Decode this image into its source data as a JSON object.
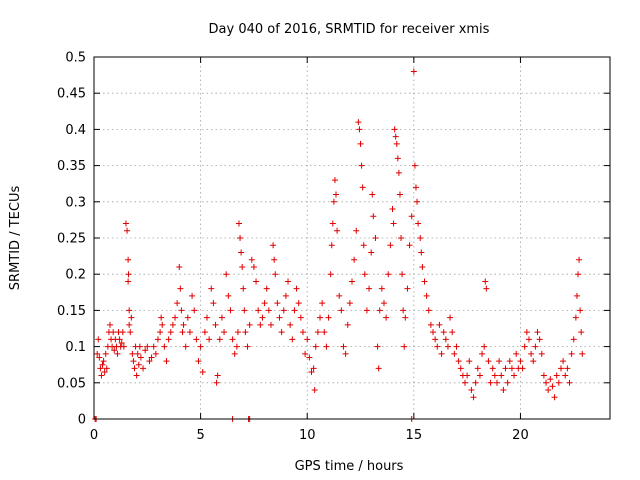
{
  "chart_data": {
    "type": "scatter",
    "title": "Day 040 of 2016, SRMTID for receiver xmis",
    "xlabel": "GPS time / hours",
    "ylabel": "SRMTID / TECUs",
    "xlim": [
      0,
      24.2
    ],
    "ylim": [
      0,
      0.5
    ],
    "xticks": [
      0,
      5,
      10,
      15,
      20
    ],
    "xtick_labels": [
      "0",
      "5",
      "10",
      "15",
      "20"
    ],
    "yticks": [
      0,
      0.05,
      0.1,
      0.15,
      0.2,
      0.25,
      0.3,
      0.35,
      0.4,
      0.45,
      0.5
    ],
    "ytick_labels": [
      "0",
      "0.05",
      "0.1",
      "0.15",
      "0.2",
      "0.25",
      "0.3",
      "0.35",
      "0.4",
      "0.45",
      "0.5"
    ],
    "grid": true,
    "marker": "plus",
    "series": [
      {
        "name": "SRMTID",
        "color": "#e00000",
        "points": [
          [
            0.05,
            0.0
          ],
          [
            0.15,
            0.09
          ],
          [
            0.2,
            0.11
          ],
          [
            0.25,
            0.085
          ],
          [
            0.3,
            0.07
          ],
          [
            0.35,
            0.06
          ],
          [
            0.4,
            0.075
          ],
          [
            0.45,
            0.08
          ],
          [
            0.5,
            0.065
          ],
          [
            0.55,
            0.09
          ],
          [
            0.6,
            0.07
          ],
          [
            0.65,
            0.1
          ],
          [
            0.7,
            0.12
          ],
          [
            0.75,
            0.13
          ],
          [
            0.8,
            0.11
          ],
          [
            0.85,
            0.1
          ],
          [
            0.9,
            0.12
          ],
          [
            0.95,
            0.095
          ],
          [
            1.0,
            0.11
          ],
          [
            1.05,
            0.1
          ],
          [
            1.1,
            0.09
          ],
          [
            1.15,
            0.12
          ],
          [
            1.2,
            0.11
          ],
          [
            1.25,
            0.1
          ],
          [
            1.3,
            0.105
          ],
          [
            1.35,
            0.12
          ],
          [
            1.4,
            0.1
          ],
          [
            1.5,
            0.27
          ],
          [
            1.55,
            0.26
          ],
          [
            1.6,
            0.22
          ],
          [
            1.6,
            0.19
          ],
          [
            1.62,
            0.2
          ],
          [
            1.65,
            0.15
          ],
          [
            1.65,
            0.13
          ],
          [
            1.7,
            0.12
          ],
          [
            1.75,
            0.14
          ],
          [
            1.8,
            0.09
          ],
          [
            1.85,
            0.08
          ],
          [
            1.9,
            0.07
          ],
          [
            1.95,
            0.1
          ],
          [
            2.0,
            0.06
          ],
          [
            2.05,
            0.09
          ],
          [
            2.1,
            0.075
          ],
          [
            2.15,
            0.1
          ],
          [
            2.2,
            0.085
          ],
          [
            2.3,
            0.07
          ],
          [
            2.4,
            0.095
          ],
          [
            2.5,
            0.1
          ],
          [
            2.6,
            0.08
          ],
          [
            2.7,
            0.085
          ],
          [
            2.8,
            0.1
          ],
          [
            2.9,
            0.09
          ],
          [
            3.0,
            0.11
          ],
          [
            3.1,
            0.12
          ],
          [
            3.15,
            0.14
          ],
          [
            3.2,
            0.13
          ],
          [
            3.3,
            0.1
          ],
          [
            3.4,
            0.08
          ],
          [
            3.5,
            0.11
          ],
          [
            3.6,
            0.12
          ],
          [
            3.7,
            0.13
          ],
          [
            3.8,
            0.14
          ],
          [
            3.9,
            0.16
          ],
          [
            4.0,
            0.21
          ],
          [
            4.05,
            0.18
          ],
          [
            4.1,
            0.15
          ],
          [
            4.15,
            0.12
          ],
          [
            4.2,
            0.13
          ],
          [
            4.3,
            0.1
          ],
          [
            4.4,
            0.14
          ],
          [
            4.5,
            0.12
          ],
          [
            4.6,
            0.17
          ],
          [
            4.7,
            0.15
          ],
          [
            4.8,
            0.11
          ],
          [
            4.9,
            0.08
          ],
          [
            5.0,
            0.1
          ],
          [
            5.1,
            0.065
          ],
          [
            5.2,
            0.12
          ],
          [
            5.3,
            0.14
          ],
          [
            5.4,
            0.11
          ],
          [
            5.5,
            0.18
          ],
          [
            5.6,
            0.16
          ],
          [
            5.7,
            0.13
          ],
          [
            5.75,
            0.05
          ],
          [
            5.8,
            0.06
          ],
          [
            5.9,
            0.11
          ],
          [
            6.0,
            0.14
          ],
          [
            6.1,
            0.12
          ],
          [
            6.2,
            0.2
          ],
          [
            6.3,
            0.17
          ],
          [
            6.4,
            0.15
          ],
          [
            6.5,
            0.11
          ],
          [
            6.6,
            0.09
          ],
          [
            6.7,
            0.1
          ],
          [
            6.75,
            0.12
          ],
          [
            6.8,
            0.27
          ],
          [
            6.85,
            0.25
          ],
          [
            6.9,
            0.23
          ],
          [
            6.95,
            0.21
          ],
          [
            7.0,
            0.18
          ],
          [
            7.05,
            0.15
          ],
          [
            7.1,
            0.12
          ],
          [
            7.2,
            0.1
          ],
          [
            7.3,
            0.13
          ],
          [
            7.4,
            0.22
          ],
          [
            7.5,
            0.21
          ],
          [
            7.6,
            0.19
          ],
          [
            7.7,
            0.15
          ],
          [
            7.8,
            0.13
          ],
          [
            7.9,
            0.14
          ],
          [
            8.0,
            0.16
          ],
          [
            8.1,
            0.18
          ],
          [
            8.2,
            0.15
          ],
          [
            8.3,
            0.13
          ],
          [
            8.4,
            0.24
          ],
          [
            8.45,
            0.22
          ],
          [
            8.5,
            0.2
          ],
          [
            8.6,
            0.16
          ],
          [
            8.7,
            0.14
          ],
          [
            8.8,
            0.12
          ],
          [
            8.9,
            0.15
          ],
          [
            9.0,
            0.17
          ],
          [
            9.1,
            0.19
          ],
          [
            9.2,
            0.13
          ],
          [
            9.3,
            0.11
          ],
          [
            9.4,
            0.15
          ],
          [
            9.5,
            0.18
          ],
          [
            9.6,
            0.16
          ],
          [
            9.7,
            0.14
          ],
          [
            9.8,
            0.12
          ],
          [
            9.9,
            0.09
          ],
          [
            10.0,
            0.11
          ],
          [
            10.1,
            0.085
          ],
          [
            10.2,
            0.065
          ],
          [
            10.3,
            0.07
          ],
          [
            10.35,
            0.04
          ],
          [
            10.4,
            0.1
          ],
          [
            10.5,
            0.12
          ],
          [
            10.6,
            0.14
          ],
          [
            10.7,
            0.16
          ],
          [
            10.8,
            0.12
          ],
          [
            10.9,
            0.1
          ],
          [
            11.0,
            0.14
          ],
          [
            11.1,
            0.2
          ],
          [
            11.15,
            0.24
          ],
          [
            11.2,
            0.27
          ],
          [
            11.25,
            0.3
          ],
          [
            11.3,
            0.33
          ],
          [
            11.35,
            0.31
          ],
          [
            11.4,
            0.26
          ],
          [
            11.5,
            0.17
          ],
          [
            11.6,
            0.15
          ],
          [
            11.7,
            0.1
          ],
          [
            11.8,
            0.09
          ],
          [
            11.9,
            0.13
          ],
          [
            12.0,
            0.16
          ],
          [
            12.1,
            0.19
          ],
          [
            12.2,
            0.22
          ],
          [
            12.3,
            0.26
          ],
          [
            12.4,
            0.41
          ],
          [
            12.45,
            0.4
          ],
          [
            12.5,
            0.38
          ],
          [
            12.55,
            0.35
          ],
          [
            12.6,
            0.32
          ],
          [
            12.65,
            0.24
          ],
          [
            12.7,
            0.2
          ],
          [
            12.8,
            0.15
          ],
          [
            12.9,
            0.18
          ],
          [
            13.0,
            0.23
          ],
          [
            13.05,
            0.31
          ],
          [
            13.1,
            0.28
          ],
          [
            13.2,
            0.25
          ],
          [
            13.3,
            0.1
          ],
          [
            13.35,
            0.07
          ],
          [
            13.4,
            0.15
          ],
          [
            13.5,
            0.18
          ],
          [
            13.6,
            0.16
          ],
          [
            13.7,
            0.14
          ],
          [
            13.8,
            0.2
          ],
          [
            13.9,
            0.24
          ],
          [
            14.0,
            0.29
          ],
          [
            14.05,
            0.27
          ],
          [
            14.1,
            0.4
          ],
          [
            14.15,
            0.39
          ],
          [
            14.2,
            0.38
          ],
          [
            14.25,
            0.36
          ],
          [
            14.3,
            0.34
          ],
          [
            14.35,
            0.31
          ],
          [
            14.4,
            0.25
          ],
          [
            14.45,
            0.2
          ],
          [
            14.5,
            0.15
          ],
          [
            14.55,
            0.1
          ],
          [
            14.6,
            0.14
          ],
          [
            14.7,
            0.18
          ],
          [
            14.8,
            0.24
          ],
          [
            14.9,
            0.28
          ],
          [
            15.0,
            0.48
          ],
          [
            15.05,
            0.35
          ],
          [
            15.1,
            0.32
          ],
          [
            15.15,
            0.3
          ],
          [
            15.2,
            0.27
          ],
          [
            15.3,
            0.25
          ],
          [
            15.35,
            0.23
          ],
          [
            15.4,
            0.21
          ],
          [
            15.5,
            0.19
          ],
          [
            15.6,
            0.17
          ],
          [
            15.7,
            0.15
          ],
          [
            15.8,
            0.13
          ],
          [
            15.9,
            0.12
          ],
          [
            16.0,
            0.11
          ],
          [
            16.1,
            0.1
          ],
          [
            16.2,
            0.13
          ],
          [
            16.3,
            0.09
          ],
          [
            16.4,
            0.12
          ],
          [
            16.5,
            0.11
          ],
          [
            16.6,
            0.1
          ],
          [
            16.7,
            0.14
          ],
          [
            16.8,
            0.12
          ],
          [
            16.9,
            0.09
          ],
          [
            17.0,
            0.1
          ],
          [
            17.1,
            0.08
          ],
          [
            17.2,
            0.07
          ],
          [
            17.3,
            0.06
          ],
          [
            17.4,
            0.05
          ],
          [
            17.5,
            0.06
          ],
          [
            17.6,
            0.08
          ],
          [
            17.7,
            0.04
          ],
          [
            17.8,
            0.03
          ],
          [
            17.9,
            0.05
          ],
          [
            18.0,
            0.07
          ],
          [
            18.1,
            0.06
          ],
          [
            18.2,
            0.09
          ],
          [
            18.3,
            0.1
          ],
          [
            18.35,
            0.19
          ],
          [
            18.4,
            0.18
          ],
          [
            18.5,
            0.08
          ],
          [
            18.6,
            0.05
          ],
          [
            18.7,
            0.07
          ],
          [
            18.8,
            0.06
          ],
          [
            18.9,
            0.05
          ],
          [
            19.0,
            0.08
          ],
          [
            19.1,
            0.06
          ],
          [
            19.2,
            0.04
          ],
          [
            19.3,
            0.07
          ],
          [
            19.4,
            0.05
          ],
          [
            19.5,
            0.08
          ],
          [
            19.6,
            0.07
          ],
          [
            19.7,
            0.06
          ],
          [
            19.8,
            0.09
          ],
          [
            19.9,
            0.07
          ],
          [
            20.0,
            0.08
          ],
          [
            20.1,
            0.07
          ],
          [
            20.2,
            0.1
          ],
          [
            20.3,
            0.12
          ],
          [
            20.4,
            0.11
          ],
          [
            20.5,
            0.09
          ],
          [
            20.6,
            0.08
          ],
          [
            20.7,
            0.1
          ],
          [
            20.8,
            0.12
          ],
          [
            20.9,
            0.11
          ],
          [
            21.0,
            0.09
          ],
          [
            21.1,
            0.06
          ],
          [
            21.2,
            0.05
          ],
          [
            21.3,
            0.04
          ],
          [
            21.4,
            0.055
          ],
          [
            21.5,
            0.045
          ],
          [
            21.6,
            0.03
          ],
          [
            21.7,
            0.06
          ],
          [
            21.8,
            0.05
          ],
          [
            21.9,
            0.07
          ],
          [
            22.0,
            0.08
          ],
          [
            22.1,
            0.06
          ],
          [
            22.2,
            0.07
          ],
          [
            22.3,
            0.05
          ],
          [
            22.4,
            0.09
          ],
          [
            22.5,
            0.11
          ],
          [
            22.6,
            0.14
          ],
          [
            22.65,
            0.17
          ],
          [
            22.7,
            0.2
          ],
          [
            22.75,
            0.22
          ],
          [
            22.8,
            0.15
          ],
          [
            22.85,
            0.12
          ],
          [
            22.9,
            0.09
          ],
          [
            0.1,
            0.0
          ],
          [
            6.5,
            0.0
          ],
          [
            7.25,
            0.0
          ],
          [
            7.3,
            0.0
          ],
          [
            14.9,
            0.0
          ]
        ]
      }
    ]
  }
}
